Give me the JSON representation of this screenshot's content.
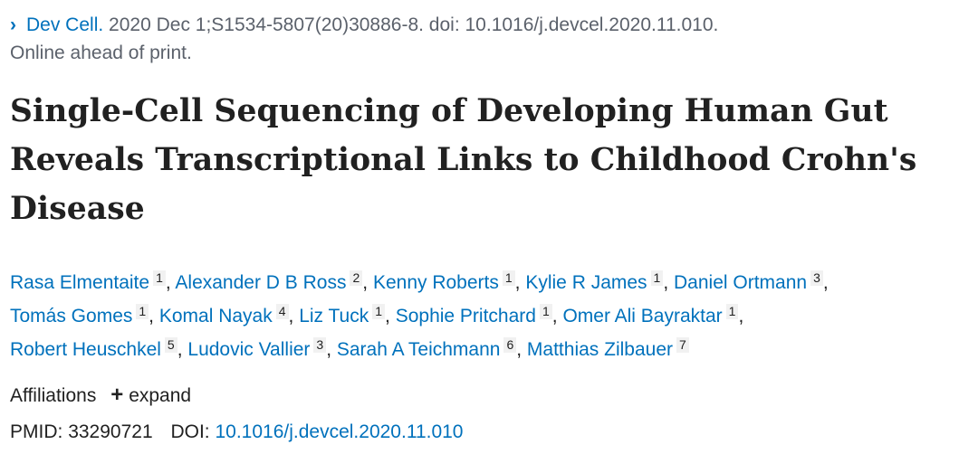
{
  "citation": {
    "journal": "Dev Cell.",
    "details": "2020 Dec 1;S1534-5807(20)30886-8. doi: 10.1016/j.devcel.2020.11.010."
  },
  "status": "Online ahead of print.",
  "title": "Single-Cell Sequencing of Developing Human Gut Reveals Transcriptional Links to Childhood Crohn's Disease",
  "authors": [
    {
      "name": "Rasa Elmentaite",
      "aff": "1"
    },
    {
      "name": "Alexander D B Ross",
      "aff": "2"
    },
    {
      "name": "Kenny Roberts",
      "aff": "1"
    },
    {
      "name": "Kylie R James",
      "aff": "1"
    },
    {
      "name": "Daniel Ortmann",
      "aff": "3"
    },
    {
      "name": "Tomás Gomes",
      "aff": "1"
    },
    {
      "name": "Komal Nayak",
      "aff": "4"
    },
    {
      "name": "Liz Tuck",
      "aff": "1"
    },
    {
      "name": "Sophie Pritchard",
      "aff": "1"
    },
    {
      "name": "Omer Ali Bayraktar",
      "aff": "1"
    },
    {
      "name": "Robert Heuschkel",
      "aff": "5"
    },
    {
      "name": "Ludovic Vallier",
      "aff": "3"
    },
    {
      "name": "Sarah A Teichmann",
      "aff": "6"
    },
    {
      "name": "Matthias Zilbauer",
      "aff": "7"
    }
  ],
  "affiliations": {
    "label": "Affiliations",
    "expand_label": "expand",
    "expand_icon": "+"
  },
  "identifiers": {
    "pmid_label": "PMID:",
    "pmid": "33290721",
    "doi_label": "DOI:",
    "doi": "10.1016/j.devcel.2020.11.010"
  },
  "icons": {
    "chevron": "›"
  },
  "colors": {
    "link": "#0071bc",
    "muted": "#5b616b",
    "text": "#212121",
    "badge_bg": "#f1f1f1"
  }
}
